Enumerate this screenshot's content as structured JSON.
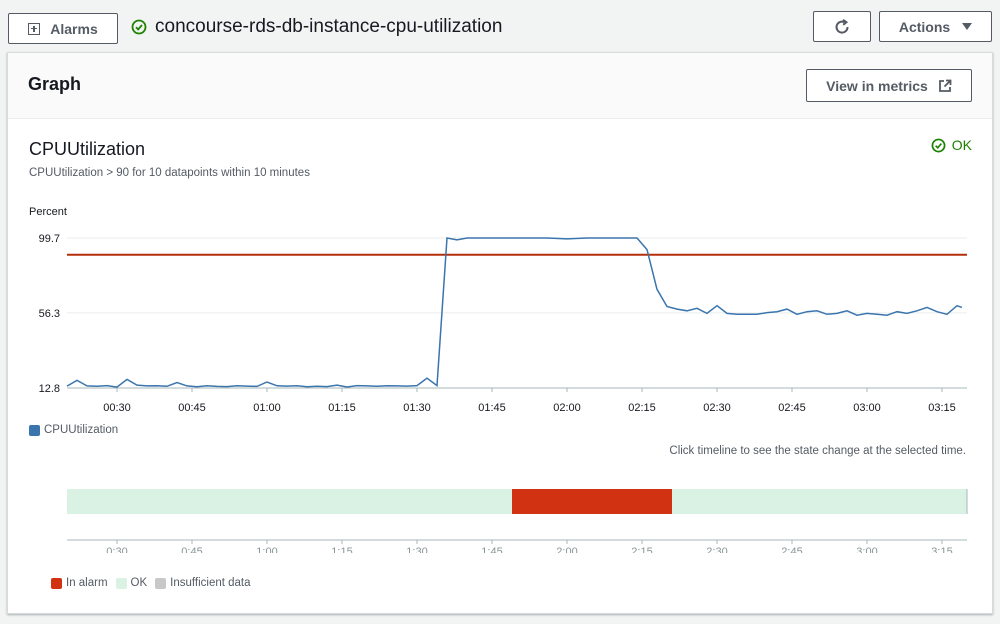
{
  "header": {
    "alarms_button": "Alarms",
    "alarm_name": "concourse-rds-db-instance-cpu-utilization",
    "actions_button": "Actions"
  },
  "panel": {
    "title": "Graph",
    "view_in_metrics": "View in metrics"
  },
  "chart_info": {
    "title": "CPUUtilization",
    "subtitle": "CPUUtilization > 90 for 10 datapoints within 10 minutes",
    "state": "OK",
    "hint": "Click timeline to see the state change at the selected time."
  },
  "colors": {
    "series": "#3a75ad",
    "threshold": "#b52f0c",
    "ok": "#d9f2e4",
    "alarm": "#d13212",
    "insufficient": "#c8c8c8"
  },
  "chart_data": [
    {
      "type": "line",
      "ylabel": "Percent",
      "yticks": [
        12.8,
        56.3,
        99.7
      ],
      "ylim": [
        12.8,
        99.7
      ],
      "xlim": [
        "00:20",
        "03:20"
      ],
      "xticks": [
        "00:30",
        "00:45",
        "01:00",
        "01:15",
        "01:30",
        "01:45",
        "02:00",
        "02:15",
        "02:30",
        "02:45",
        "03:00",
        "03:15"
      ],
      "threshold": 90,
      "grid": true,
      "legend": "bottom-left",
      "series": [
        {
          "name": "CPUUtilization",
          "x": [
            "00:20",
            "00:22",
            "00:24",
            "00:26",
            "00:28",
            "00:30",
            "00:32",
            "00:34",
            "00:36",
            "00:38",
            "00:40",
            "00:42",
            "00:44",
            "00:46",
            "00:48",
            "00:50",
            "00:52",
            "00:54",
            "00:56",
            "00:58",
            "01:00",
            "01:02",
            "01:04",
            "01:06",
            "01:08",
            "01:10",
            "01:12",
            "01:14",
            "01:16",
            "01:18",
            "01:20",
            "01:22",
            "01:24",
            "01:26",
            "01:28",
            "01:30",
            "01:32",
            "01:34",
            "01:36",
            "01:38",
            "01:40",
            "01:44",
            "01:50",
            "01:56",
            "02:00",
            "02:04",
            "02:10",
            "02:14",
            "02:16",
            "02:18",
            "02:20",
            "02:22",
            "02:24",
            "02:26",
            "02:28",
            "02:30",
            "02:32",
            "02:34",
            "02:36",
            "02:38",
            "02:40",
            "02:42",
            "02:44",
            "02:46",
            "02:48",
            "02:50",
            "02:52",
            "02:54",
            "02:56",
            "02:58",
            "03:00",
            "03:02",
            "03:04",
            "03:06",
            "03:08",
            "03:10",
            "03:12",
            "03:14",
            "03:16",
            "03:18",
            "03:19"
          ],
          "values": [
            13.9,
            17.2,
            14.0,
            13.8,
            14.2,
            13.3,
            17.8,
            14.5,
            14.0,
            14.1,
            13.8,
            16.0,
            14.0,
            13.5,
            14.1,
            13.7,
            13.6,
            14.1,
            13.9,
            13.7,
            16.3,
            14.1,
            13.9,
            14.1,
            13.5,
            13.8,
            13.6,
            14.5,
            13.4,
            14.2,
            14.0,
            13.8,
            14.1,
            14.0,
            13.9,
            14.2,
            18.5,
            14.2,
            99.7,
            98.6,
            99.7,
            99.7,
            99.7,
            99.7,
            99.2,
            99.7,
            99.7,
            99.7,
            93.0,
            70.0,
            60.0,
            58.5,
            57.5,
            59.0,
            56.0,
            60.5,
            56.0,
            55.5,
            55.5,
            55.5,
            56.5,
            57.0,
            58.5,
            55.5,
            57.0,
            57.5,
            55.5,
            56.0,
            57.5,
            55.0,
            56.0,
            55.5,
            55.0,
            57.0,
            56.0,
            57.5,
            59.5,
            57.0,
            55.5,
            60.5,
            59.5
          ]
        }
      ]
    },
    {
      "type": "timeline",
      "xlim": [
        "0:20",
        "3:20"
      ],
      "xticks": [
        "0:30",
        "0:45",
        "1:00",
        "1:15",
        "1:30",
        "1:45",
        "2:00",
        "2:15",
        "2:30",
        "2:45",
        "3:00",
        "3:15"
      ],
      "segments": [
        {
          "state": "ok",
          "start": "0:20",
          "end": "1:49"
        },
        {
          "state": "alarm",
          "start": "1:49",
          "end": "2:21"
        },
        {
          "state": "ok",
          "start": "2:21",
          "end": "3:20"
        }
      ],
      "legend": [
        "In alarm",
        "OK",
        "Insufficient data"
      ]
    }
  ]
}
